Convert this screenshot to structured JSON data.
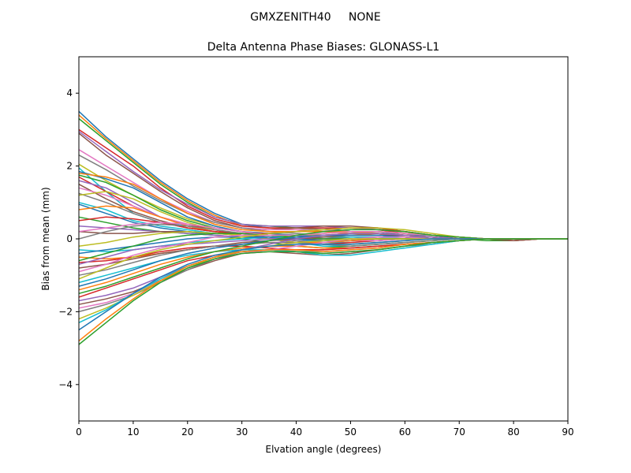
{
  "suptitle": "GMXZENITH40     NONE",
  "chart_data": {
    "type": "line",
    "title": "Delta Antenna Phase Biases: GLONASS-L1",
    "xlabel": "Elvation angle (degrees)",
    "ylabel": "Bias from mean (mm)",
    "xlim": [
      0,
      90
    ],
    "ylim": [
      -5,
      5
    ],
    "xticks": [
      0,
      10,
      20,
      30,
      40,
      50,
      60,
      70,
      80,
      90
    ],
    "yticks": [
      -4,
      -2,
      0,
      2,
      4
    ],
    "ytick_labels": [
      "−4",
      "−2",
      "0",
      "2",
      "4"
    ],
    "grid": false,
    "legend": "none",
    "palette": [
      "#1f77b4",
      "#ff7f0e",
      "#2ca02c",
      "#d62728",
      "#9467bd",
      "#8c564b",
      "#e377c2",
      "#7f7f7f",
      "#bcbd22",
      "#17becf"
    ],
    "x": [
      0,
      5,
      10,
      15,
      20,
      25,
      30,
      35,
      40,
      45,
      50,
      55,
      60,
      65,
      70,
      75,
      80,
      85,
      90
    ],
    "series": [
      {
        "values": [
          3.5,
          2.8,
          2.2,
          1.6,
          1.1,
          0.7,
          0.4,
          0.3,
          0.3,
          0.3,
          0.2,
          0.2,
          0.1,
          0.1,
          0.0,
          0.0,
          0.0,
          0.0,
          0.0
        ]
      },
      {
        "values": [
          3.4,
          2.75,
          2.15,
          1.55,
          1.05,
          0.65,
          0.35,
          0.3,
          0.25,
          0.2,
          0.15,
          0.1,
          0.1,
          0.05,
          0.0,
          0.0,
          -0.05,
          0.0,
          0.0
        ]
      },
      {
        "values": [
          3.3,
          2.7,
          2.1,
          1.5,
          1.0,
          0.6,
          0.4,
          0.35,
          0.3,
          0.25,
          0.2,
          0.15,
          0.1,
          0.05,
          0.0,
          -0.05,
          -0.05,
          0.0,
          0.0
        ]
      },
      {
        "values": [
          3.0,
          2.5,
          2.0,
          1.4,
          0.9,
          0.55,
          0.35,
          0.3,
          0.3,
          0.3,
          0.3,
          0.25,
          0.15,
          0.1,
          0.05,
          0.0,
          -0.05,
          0.0,
          0.0
        ]
      },
      {
        "values": [
          2.95,
          2.4,
          1.85,
          1.35,
          0.95,
          0.6,
          0.4,
          0.35,
          0.35,
          0.35,
          0.3,
          0.25,
          0.2,
          0.1,
          0.05,
          0.0,
          0.0,
          0.0,
          0.0
        ]
      },
      {
        "values": [
          2.9,
          2.3,
          1.8,
          1.3,
          0.85,
          0.5,
          0.3,
          0.25,
          0.3,
          0.35,
          0.35,
          0.3,
          0.2,
          0.1,
          0.05,
          0.0,
          -0.05,
          0.0,
          0.0
        ]
      },
      {
        "values": [
          2.45,
          2.0,
          1.55,
          1.1,
          0.75,
          0.45,
          0.3,
          0.25,
          0.25,
          0.25,
          0.2,
          0.15,
          0.1,
          0.05,
          0.0,
          0.0,
          0.0,
          0.0,
          0.0
        ]
      },
      {
        "values": [
          2.3,
          1.9,
          1.45,
          1.05,
          0.7,
          0.45,
          0.3,
          0.2,
          0.15,
          0.1,
          0.1,
          0.1,
          0.05,
          0.05,
          0.0,
          0.0,
          0.0,
          0.0,
          0.0
        ]
      },
      {
        "values": [
          2.05,
          1.6,
          1.2,
          0.85,
          0.55,
          0.35,
          0.2,
          0.15,
          0.1,
          0.1,
          0.15,
          0.2,
          0.15,
          0.1,
          0.05,
          0.0,
          0.0,
          0.0,
          0.0
        ]
      },
      {
        "values": [
          1.95,
          1.3,
          0.7,
          0.45,
          0.35,
          0.3,
          0.2,
          0.1,
          0.0,
          -0.1,
          -0.1,
          -0.05,
          0.0,
          0.0,
          0.0,
          0.0,
          0.0,
          0.0,
          0.0
        ]
      },
      {
        "values": [
          1.85,
          1.65,
          1.4,
          1.0,
          0.6,
          0.35,
          0.2,
          0.15,
          0.1,
          0.05,
          0.05,
          0.05,
          0.05,
          0.0,
          0.0,
          0.0,
          0.0,
          0.0,
          0.0
        ]
      },
      {
        "values": [
          1.8,
          1.7,
          1.5,
          1.1,
          0.7,
          0.4,
          0.25,
          0.2,
          0.2,
          0.2,
          0.2,
          0.15,
          0.1,
          0.05,
          0.0,
          0.0,
          0.0,
          0.0,
          0.0
        ]
      },
      {
        "values": [
          1.75,
          1.55,
          1.2,
          0.8,
          0.5,
          0.3,
          0.2,
          0.1,
          0.0,
          -0.05,
          0.0,
          0.05,
          0.05,
          0.0,
          0.0,
          0.0,
          0.0,
          0.0,
          0.0
        ]
      },
      {
        "values": [
          1.7,
          1.3,
          0.9,
          0.6,
          0.4,
          0.25,
          0.1,
          0.0,
          -0.1,
          -0.15,
          -0.1,
          -0.05,
          0.0,
          0.0,
          0.0,
          0.0,
          0.0,
          0.0,
          0.0
        ]
      },
      {
        "values": [
          1.6,
          1.4,
          1.0,
          0.6,
          0.35,
          0.2,
          0.1,
          0.05,
          0.05,
          0.1,
          0.15,
          0.15,
          0.1,
          0.05,
          0.0,
          0.0,
          0.0,
          0.0,
          0.0
        ]
      },
      {
        "values": [
          1.5,
          1.1,
          0.75,
          0.5,
          0.3,
          0.2,
          0.1,
          0.0,
          -0.05,
          -0.1,
          -0.05,
          0.0,
          0.0,
          0.0,
          0.0,
          0.0,
          0.0,
          0.0,
          0.0
        ]
      },
      {
        "values": [
          1.4,
          1.2,
          0.9,
          0.6,
          0.4,
          0.3,
          0.2,
          0.1,
          0.0,
          0.0,
          0.05,
          0.05,
          0.0,
          0.0,
          0.0,
          0.0,
          0.0,
          0.0,
          0.0
        ]
      },
      {
        "values": [
          1.25,
          1.0,
          0.7,
          0.45,
          0.3,
          0.2,
          0.1,
          0.05,
          0.0,
          -0.05,
          -0.05,
          0.0,
          0.0,
          0.0,
          0.0,
          0.0,
          0.0,
          0.0,
          0.0
        ]
      },
      {
        "values": [
          1.2,
          1.3,
          1.1,
          0.75,
          0.45,
          0.25,
          0.15,
          0.1,
          0.1,
          0.15,
          0.2,
          0.2,
          0.15,
          0.1,
          0.05,
          0.0,
          0.0,
          0.0,
          0.0
        ]
      },
      {
        "values": [
          1.0,
          0.8,
          0.5,
          0.35,
          0.25,
          0.15,
          0.1,
          0.0,
          -0.1,
          -0.2,
          -0.2,
          -0.15,
          -0.1,
          -0.05,
          0.0,
          0.0,
          0.0,
          0.0,
          0.0
        ]
      },
      {
        "values": [
          0.95,
          0.7,
          0.45,
          0.3,
          0.2,
          0.1,
          0.05,
          0.0,
          0.0,
          0.05,
          0.1,
          0.1,
          0.05,
          0.0,
          0.0,
          0.0,
          0.0,
          0.0,
          0.0
        ]
      },
      {
        "values": [
          0.8,
          0.9,
          0.85,
          0.6,
          0.35,
          0.2,
          0.1,
          0.05,
          0.05,
          0.1,
          0.15,
          0.15,
          0.1,
          0.05,
          0.0,
          0.0,
          0.0,
          0.0,
          0.0
        ]
      },
      {
        "values": [
          0.6,
          0.45,
          0.3,
          0.2,
          0.15,
          0.1,
          0.0,
          -0.1,
          -0.2,
          -0.25,
          -0.2,
          -0.15,
          -0.1,
          -0.05,
          0.0,
          0.0,
          0.0,
          0.0,
          0.0
        ]
      },
      {
        "values": [
          0.5,
          0.6,
          0.55,
          0.45,
          0.3,
          0.2,
          0.15,
          0.15,
          0.2,
          0.25,
          0.3,
          0.3,
          0.2,
          0.1,
          0.05,
          0.0,
          0.0,
          0.0,
          0.0
        ]
      },
      {
        "values": [
          0.35,
          0.3,
          0.25,
          0.2,
          0.15,
          0.1,
          0.05,
          0.0,
          -0.05,
          -0.1,
          -0.05,
          0.0,
          0.0,
          0.0,
          0.0,
          0.0,
          0.0,
          0.0,
          0.0
        ]
      },
      {
        "values": [
          0.2,
          0.15,
          0.15,
          0.2,
          0.2,
          0.15,
          0.1,
          0.05,
          0.0,
          0.0,
          0.05,
          0.05,
          0.05,
          0.0,
          0.0,
          0.0,
          0.0,
          0.0,
          0.0
        ]
      },
      {
        "values": [
          0.2,
          0.3,
          0.4,
          0.45,
          0.4,
          0.3,
          0.2,
          0.1,
          0.05,
          0.0,
          -0.05,
          -0.05,
          0.0,
          0.0,
          0.0,
          0.0,
          0.0,
          0.0,
          0.0
        ]
      },
      {
        "values": [
          0.0,
          0.2,
          0.35,
          0.4,
          0.35,
          0.25,
          0.15,
          0.05,
          -0.05,
          -0.15,
          -0.2,
          -0.15,
          -0.1,
          -0.05,
          0.0,
          0.0,
          0.0,
          0.0,
          0.0
        ]
      },
      {
        "values": [
          -0.2,
          -0.1,
          0.05,
          0.15,
          0.2,
          0.15,
          0.1,
          0.0,
          -0.1,
          -0.15,
          -0.15,
          -0.1,
          -0.05,
          0.0,
          0.0,
          0.0,
          0.0,
          0.0,
          0.0
        ]
      },
      {
        "values": [
          -0.3,
          -0.35,
          -0.3,
          -0.2,
          -0.1,
          -0.05,
          0.0,
          0.05,
          0.05,
          0.05,
          0.05,
          0.05,
          0.0,
          0.0,
          0.0,
          0.0,
          0.0,
          0.0,
          0.0
        ]
      },
      {
        "values": [
          -0.4,
          -0.3,
          -0.2,
          -0.1,
          0.0,
          0.05,
          0.05,
          0.05,
          0.0,
          -0.05,
          -0.05,
          0.0,
          0.0,
          0.0,
          0.0,
          0.0,
          0.0,
          0.0,
          0.0
        ]
      },
      {
        "values": [
          -0.5,
          -0.55,
          -0.5,
          -0.4,
          -0.3,
          -0.2,
          -0.15,
          -0.1,
          -0.1,
          -0.1,
          -0.05,
          0.0,
          0.0,
          0.0,
          0.0,
          0.0,
          0.0,
          0.0,
          0.0
        ]
      },
      {
        "values": [
          -0.6,
          -0.4,
          -0.2,
          0.0,
          0.1,
          0.15,
          0.15,
          0.1,
          0.05,
          0.0,
          0.0,
          0.0,
          0.0,
          0.0,
          0.0,
          0.0,
          0.0,
          0.0,
          0.0
        ]
      },
      {
        "values": [
          -0.65,
          -0.6,
          -0.5,
          -0.35,
          -0.25,
          -0.2,
          -0.2,
          -0.25,
          -0.3,
          -0.3,
          -0.25,
          -0.2,
          -0.15,
          -0.1,
          -0.05,
          0.0,
          0.0,
          0.0,
          0.0
        ]
      },
      {
        "values": [
          -0.7,
          -0.5,
          -0.3,
          -0.2,
          -0.15,
          -0.1,
          -0.05,
          0.0,
          0.05,
          0.1,
          0.1,
          0.1,
          0.05,
          0.0,
          0.0,
          0.0,
          0.0,
          0.0,
          0.0
        ]
      },
      {
        "values": [
          -0.8,
          -0.7,
          -0.55,
          -0.4,
          -0.3,
          -0.2,
          -0.1,
          -0.05,
          0.0,
          0.05,
          0.1,
          0.1,
          0.1,
          0.05,
          0.0,
          0.0,
          0.0,
          0.0,
          0.0
        ]
      },
      {
        "values": [
          -0.9,
          -0.7,
          -0.45,
          -0.25,
          -0.1,
          0.05,
          0.1,
          0.1,
          0.1,
          0.15,
          0.2,
          0.2,
          0.15,
          0.1,
          0.05,
          0.0,
          0.0,
          0.0,
          0.0
        ]
      },
      {
        "values": [
          -1.0,
          -0.85,
          -0.65,
          -0.45,
          -0.3,
          -0.2,
          -0.15,
          -0.1,
          -0.1,
          -0.15,
          -0.15,
          -0.1,
          -0.05,
          0.0,
          0.0,
          0.0,
          0.0,
          0.0,
          0.0
        ]
      },
      {
        "values": [
          -1.1,
          -0.8,
          -0.5,
          -0.3,
          -0.15,
          -0.05,
          0.05,
          0.15,
          0.2,
          0.25,
          0.3,
          0.3,
          0.25,
          0.15,
          0.05,
          0.0,
          0.0,
          0.0,
          0.0
        ]
      },
      {
        "values": [
          -1.2,
          -1.0,
          -0.8,
          -0.6,
          -0.45,
          -0.35,
          -0.3,
          -0.3,
          -0.35,
          -0.35,
          -0.3,
          -0.25,
          -0.15,
          -0.1,
          -0.05,
          0.0,
          0.0,
          0.0,
          0.0
        ]
      },
      {
        "values": [
          -1.3,
          -1.1,
          -0.85,
          -0.6,
          -0.4,
          -0.25,
          -0.15,
          -0.05,
          0.05,
          0.1,
          0.1,
          0.1,
          0.05,
          0.0,
          0.0,
          0.0,
          0.0,
          0.0,
          0.0
        ]
      },
      {
        "values": [
          -1.4,
          -1.2,
          -0.95,
          -0.7,
          -0.5,
          -0.35,
          -0.25,
          -0.2,
          -0.2,
          -0.25,
          -0.25,
          -0.2,
          -0.15,
          -0.1,
          -0.05,
          0.0,
          0.0,
          0.0,
          0.0
        ]
      },
      {
        "values": [
          -1.5,
          -1.3,
          -1.05,
          -0.8,
          -0.55,
          -0.35,
          -0.2,
          -0.05,
          0.1,
          0.2,
          0.25,
          0.25,
          0.2,
          0.1,
          0.05,
          0.0,
          0.0,
          0.0,
          0.0
        ]
      },
      {
        "values": [
          -1.6,
          -1.35,
          -1.1,
          -0.85,
          -0.6,
          -0.45,
          -0.35,
          -0.3,
          -0.3,
          -0.3,
          -0.25,
          -0.2,
          -0.15,
          -0.1,
          -0.05,
          0.0,
          0.0,
          0.0,
          0.0
        ]
      },
      {
        "values": [
          -1.7,
          -1.55,
          -1.35,
          -1.05,
          -0.75,
          -0.5,
          -0.3,
          -0.15,
          0.0,
          0.1,
          0.15,
          0.15,
          0.1,
          0.05,
          0.0,
          0.0,
          0.0,
          0.0,
          0.0
        ]
      },
      {
        "values": [
          -1.8,
          -1.65,
          -1.45,
          -1.15,
          -0.85,
          -0.6,
          -0.4,
          -0.35,
          -0.4,
          -0.45,
          -0.4,
          -0.3,
          -0.2,
          -0.1,
          -0.05,
          0.0,
          0.0,
          0.0,
          0.0
        ]
      },
      {
        "values": [
          -1.9,
          -1.75,
          -1.5,
          -1.15,
          -0.8,
          -0.55,
          -0.4,
          -0.3,
          -0.2,
          -0.1,
          0.0,
          0.05,
          0.05,
          0.0,
          0.0,
          0.0,
          0.0,
          0.0,
          0.0
        ]
      },
      {
        "values": [
          -2.0,
          -1.8,
          -1.55,
          -1.2,
          -0.85,
          -0.55,
          -0.35,
          -0.3,
          -0.35,
          -0.4,
          -0.35,
          -0.3,
          -0.2,
          -0.15,
          -0.05,
          0.0,
          0.0,
          0.0,
          0.0
        ]
      },
      {
        "values": [
          -2.2,
          -1.9,
          -1.55,
          -1.15,
          -0.8,
          -0.5,
          -0.3,
          -0.2,
          -0.1,
          -0.05,
          0.0,
          0.0,
          0.0,
          0.0,
          0.0,
          0.0,
          0.0,
          0.0,
          0.0
        ]
      },
      {
        "values": [
          -2.3,
          -1.95,
          -1.5,
          -1.1,
          -0.75,
          -0.5,
          -0.35,
          -0.3,
          -0.35,
          -0.45,
          -0.45,
          -0.35,
          -0.25,
          -0.15,
          -0.05,
          0.0,
          0.0,
          0.0,
          0.0
        ]
      },
      {
        "values": [
          -2.5,
          -2.0,
          -1.5,
          -1.05,
          -0.7,
          -0.45,
          -0.3,
          -0.2,
          -0.15,
          -0.15,
          -0.15,
          -0.1,
          -0.05,
          0.0,
          0.0,
          0.0,
          0.0,
          0.0,
          0.0
        ]
      },
      {
        "values": [
          -2.8,
          -2.2,
          -1.65,
          -1.15,
          -0.75,
          -0.5,
          -0.35,
          -0.3,
          -0.3,
          -0.35,
          -0.3,
          -0.25,
          -0.15,
          -0.1,
          -0.05,
          0.0,
          0.0,
          0.0,
          0.0
        ]
      },
      {
        "values": [
          -2.9,
          -2.3,
          -1.7,
          -1.2,
          -0.8,
          -0.55,
          -0.4,
          -0.35,
          -0.35,
          -0.4,
          -0.35,
          -0.3,
          -0.2,
          -0.1,
          -0.05,
          0.0,
          0.0,
          0.0,
          0.0
        ]
      }
    ]
  }
}
